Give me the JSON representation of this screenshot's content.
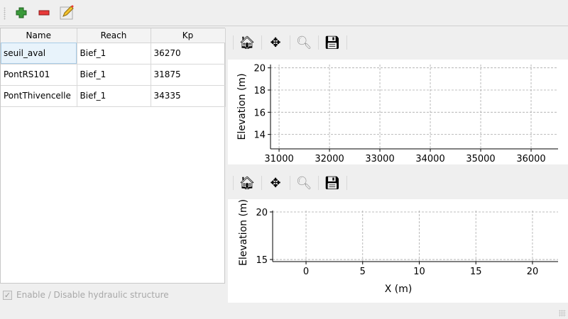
{
  "toolbar": {
    "add": "add-icon",
    "remove": "remove-icon",
    "edit": "edit-icon"
  },
  "table": {
    "headers": [
      "Name",
      "Reach",
      "Kp"
    ],
    "rows": [
      [
        "seuil_aval",
        "Bief_1",
        "36270"
      ],
      [
        "PontRS101",
        "Bief_1",
        "31875"
      ],
      [
        "PontThivencelle",
        "Bief_1",
        "34335"
      ]
    ]
  },
  "checkbox": {
    "label": "Enable / Disable hydraulic structure",
    "checked": true,
    "enabled": false
  },
  "plot_toolbar": [
    "home-icon",
    "pan-icon",
    "zoom-icon",
    "save-icon"
  ],
  "chart_data": [
    {
      "type": "line",
      "xlabel": "",
      "ylabel": "Elevation (m)",
      "xlim": [
        30830,
        36535
      ],
      "ylim": [
        12.7,
        20.3
      ],
      "xticks": [
        31000,
        32000,
        33000,
        34000,
        35000,
        36000
      ],
      "yticks": [
        14,
        16,
        18,
        20
      ],
      "grid": true,
      "series": []
    },
    {
      "type": "line",
      "xlabel": "X (m)",
      "ylabel": "Elevation (m)",
      "xlim": [
        -2.95,
        22.26
      ],
      "ylim": [
        14.78,
        20.15
      ],
      "xticks": [
        0,
        5,
        10,
        15,
        20
      ],
      "yticks": [
        15,
        20
      ],
      "grid": true,
      "series": []
    }
  ]
}
